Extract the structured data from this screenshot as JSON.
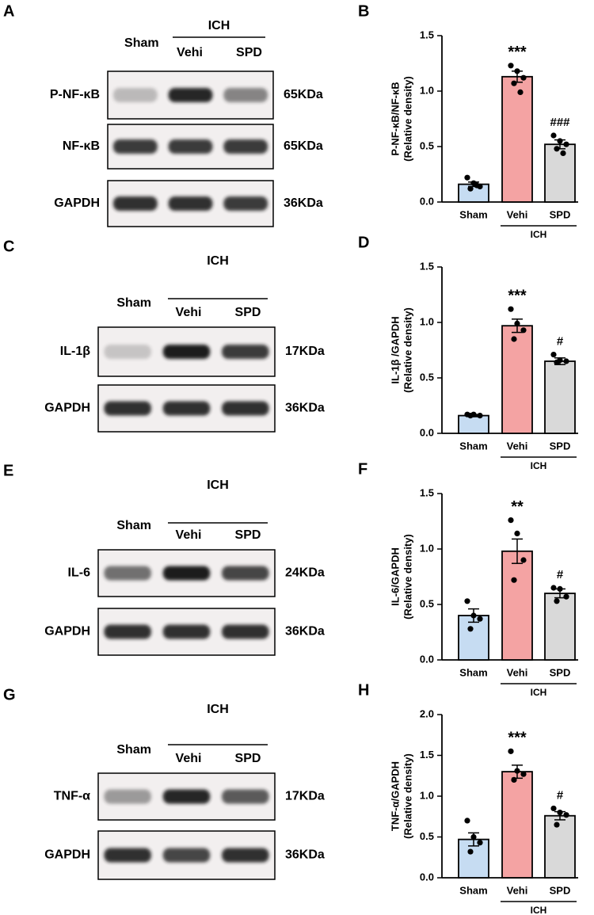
{
  "blots": [
    {
      "letter": "A",
      "group": "ICH",
      "lanes": [
        "Sham",
        "Vehi",
        "SPD"
      ],
      "rows": [
        {
          "protein": "P-NF-κB",
          "size": "65KDa"
        },
        {
          "protein": "NF-κB",
          "size": "65KDa"
        },
        {
          "protein": "GAPDH",
          "size": "36KDa"
        }
      ]
    },
    {
      "letter": "C",
      "group": "ICH",
      "lanes": [
        "Sham",
        "Vehi",
        "SPD"
      ],
      "rows": [
        {
          "protein": "IL-1β",
          "size": "17KDa"
        },
        {
          "protein": "GAPDH",
          "size": "36KDa"
        }
      ]
    },
    {
      "letter": "E",
      "group": "ICH",
      "lanes": [
        "Sham",
        "Vehi",
        "SPD"
      ],
      "rows": [
        {
          "protein": "IL-6",
          "size": "24KDa"
        },
        {
          "protein": "GAPDH",
          "size": "36KDa"
        }
      ]
    },
    {
      "letter": "G",
      "group": "ICH",
      "lanes": [
        "Sham",
        "Vehi",
        "SPD"
      ],
      "rows": [
        {
          "protein": "TNF-α",
          "size": "17KDa"
        },
        {
          "protein": "GAPDH",
          "size": "36KDa"
        }
      ]
    }
  ],
  "chart_data": [
    {
      "type": "bar",
      "letter": "B",
      "ylabel": [
        "P-NF-κB/NF-κB",
        "(Relative density)"
      ],
      "categories": [
        "Sham",
        "Vehi",
        "SPD"
      ],
      "group_label": "ICH",
      "colors": [
        "#c6dcf2",
        "#f4a3a3",
        "#d9d9d9"
      ],
      "values": [
        0.16,
        1.13,
        0.52
      ],
      "errors": [
        0.02,
        0.05,
        0.04
      ],
      "points": [
        [
          0.22,
          0.17,
          0.14,
          0.12,
          0.15
        ],
        [
          1.23,
          1.18,
          1.12,
          1.07,
          0.99
        ],
        [
          0.6,
          0.55,
          0.52,
          0.48,
          0.44
        ]
      ],
      "annotations": [
        {
          "category": "Vehi",
          "text": "***"
        },
        {
          "category": "SPD",
          "text": "###"
        }
      ],
      "ylim": [
        0,
        1.5
      ],
      "yticks": [
        {
          "value": 0,
          "label": "0.0"
        },
        0.5,
        {
          "value": 1,
          "label": "1.0"
        },
        1.5
      ]
    },
    {
      "type": "bar",
      "letter": "D",
      "ylabel": [
        "IL-1β /GAPDH",
        "(Relative density)"
      ],
      "categories": [
        "Sham",
        "Vehi",
        "SPD"
      ],
      "group_label": "ICH",
      "colors": [
        "#c6dcf2",
        "#f4a3a3",
        "#d9d9d9"
      ],
      "values": [
        0.16,
        0.97,
        0.65
      ],
      "errors": [
        0.01,
        0.06,
        0.03
      ],
      "points": [
        [
          0.17,
          0.17,
          0.16,
          0.16
        ],
        [
          1.12,
          0.99,
          0.93,
          0.85
        ],
        [
          0.71,
          0.66,
          0.65,
          0.64
        ]
      ],
      "annotations": [
        {
          "category": "Vehi",
          "text": "***"
        },
        {
          "category": "SPD",
          "text": "#"
        }
      ],
      "ylim": [
        0,
        1.5
      ],
      "yticks": [
        {
          "value": 0,
          "label": "0.0"
        },
        0.5,
        {
          "value": 1,
          "label": "1.0"
        },
        1.5
      ]
    },
    {
      "type": "bar",
      "letter": "F",
      "ylabel": [
        "IL-6/GAPDH",
        "(Relative density)"
      ],
      "categories": [
        "Sham",
        "Vehi",
        "SPD"
      ],
      "group_label": "ICH",
      "colors": [
        "#c6dcf2",
        "#f4a3a3",
        "#d9d9d9"
      ],
      "values": [
        0.4,
        0.98,
        0.6
      ],
      "errors": [
        0.06,
        0.11,
        0.04
      ],
      "points": [
        [
          0.53,
          0.4,
          0.37,
          0.28
        ],
        [
          1.26,
          1.14,
          0.9,
          0.72
        ],
        [
          0.65,
          0.64,
          0.57,
          0.53
        ]
      ],
      "annotations": [
        {
          "category": "Vehi",
          "text": "**"
        },
        {
          "category": "SPD",
          "text": "#"
        }
      ],
      "ylim": [
        0,
        1.5
      ],
      "yticks": [
        {
          "value": 0,
          "label": "0.0"
        },
        0.5,
        {
          "value": 1,
          "label": "1.0"
        },
        1.5
      ]
    },
    {
      "type": "bar",
      "letter": "H",
      "ylabel": [
        "TNF-α/GAPDH",
        "(Relative density)"
      ],
      "categories": [
        "Sham",
        "Vehi",
        "SPD"
      ],
      "group_label": "ICH",
      "colors": [
        "#c6dcf2",
        "#f4a3a3",
        "#d9d9d9"
      ],
      "values": [
        0.47,
        1.3,
        0.76
      ],
      "errors": [
        0.08,
        0.08,
        0.05
      ],
      "points": [
        [
          0.7,
          0.5,
          0.43,
          0.32
        ],
        [
          1.55,
          1.31,
          1.27,
          1.2
        ],
        [
          0.85,
          0.8,
          0.77,
          0.65
        ]
      ],
      "annotations": [
        {
          "category": "Vehi",
          "text": "***"
        },
        {
          "category": "SPD",
          "text": "#"
        }
      ],
      "ylim": [
        0,
        2
      ],
      "yticks": [
        {
          "value": 0,
          "label": "0.0"
        },
        0.5,
        {
          "value": 1,
          "label": "1.0"
        },
        1.5,
        {
          "value": 2,
          "label": "2.0"
        }
      ]
    }
  ]
}
